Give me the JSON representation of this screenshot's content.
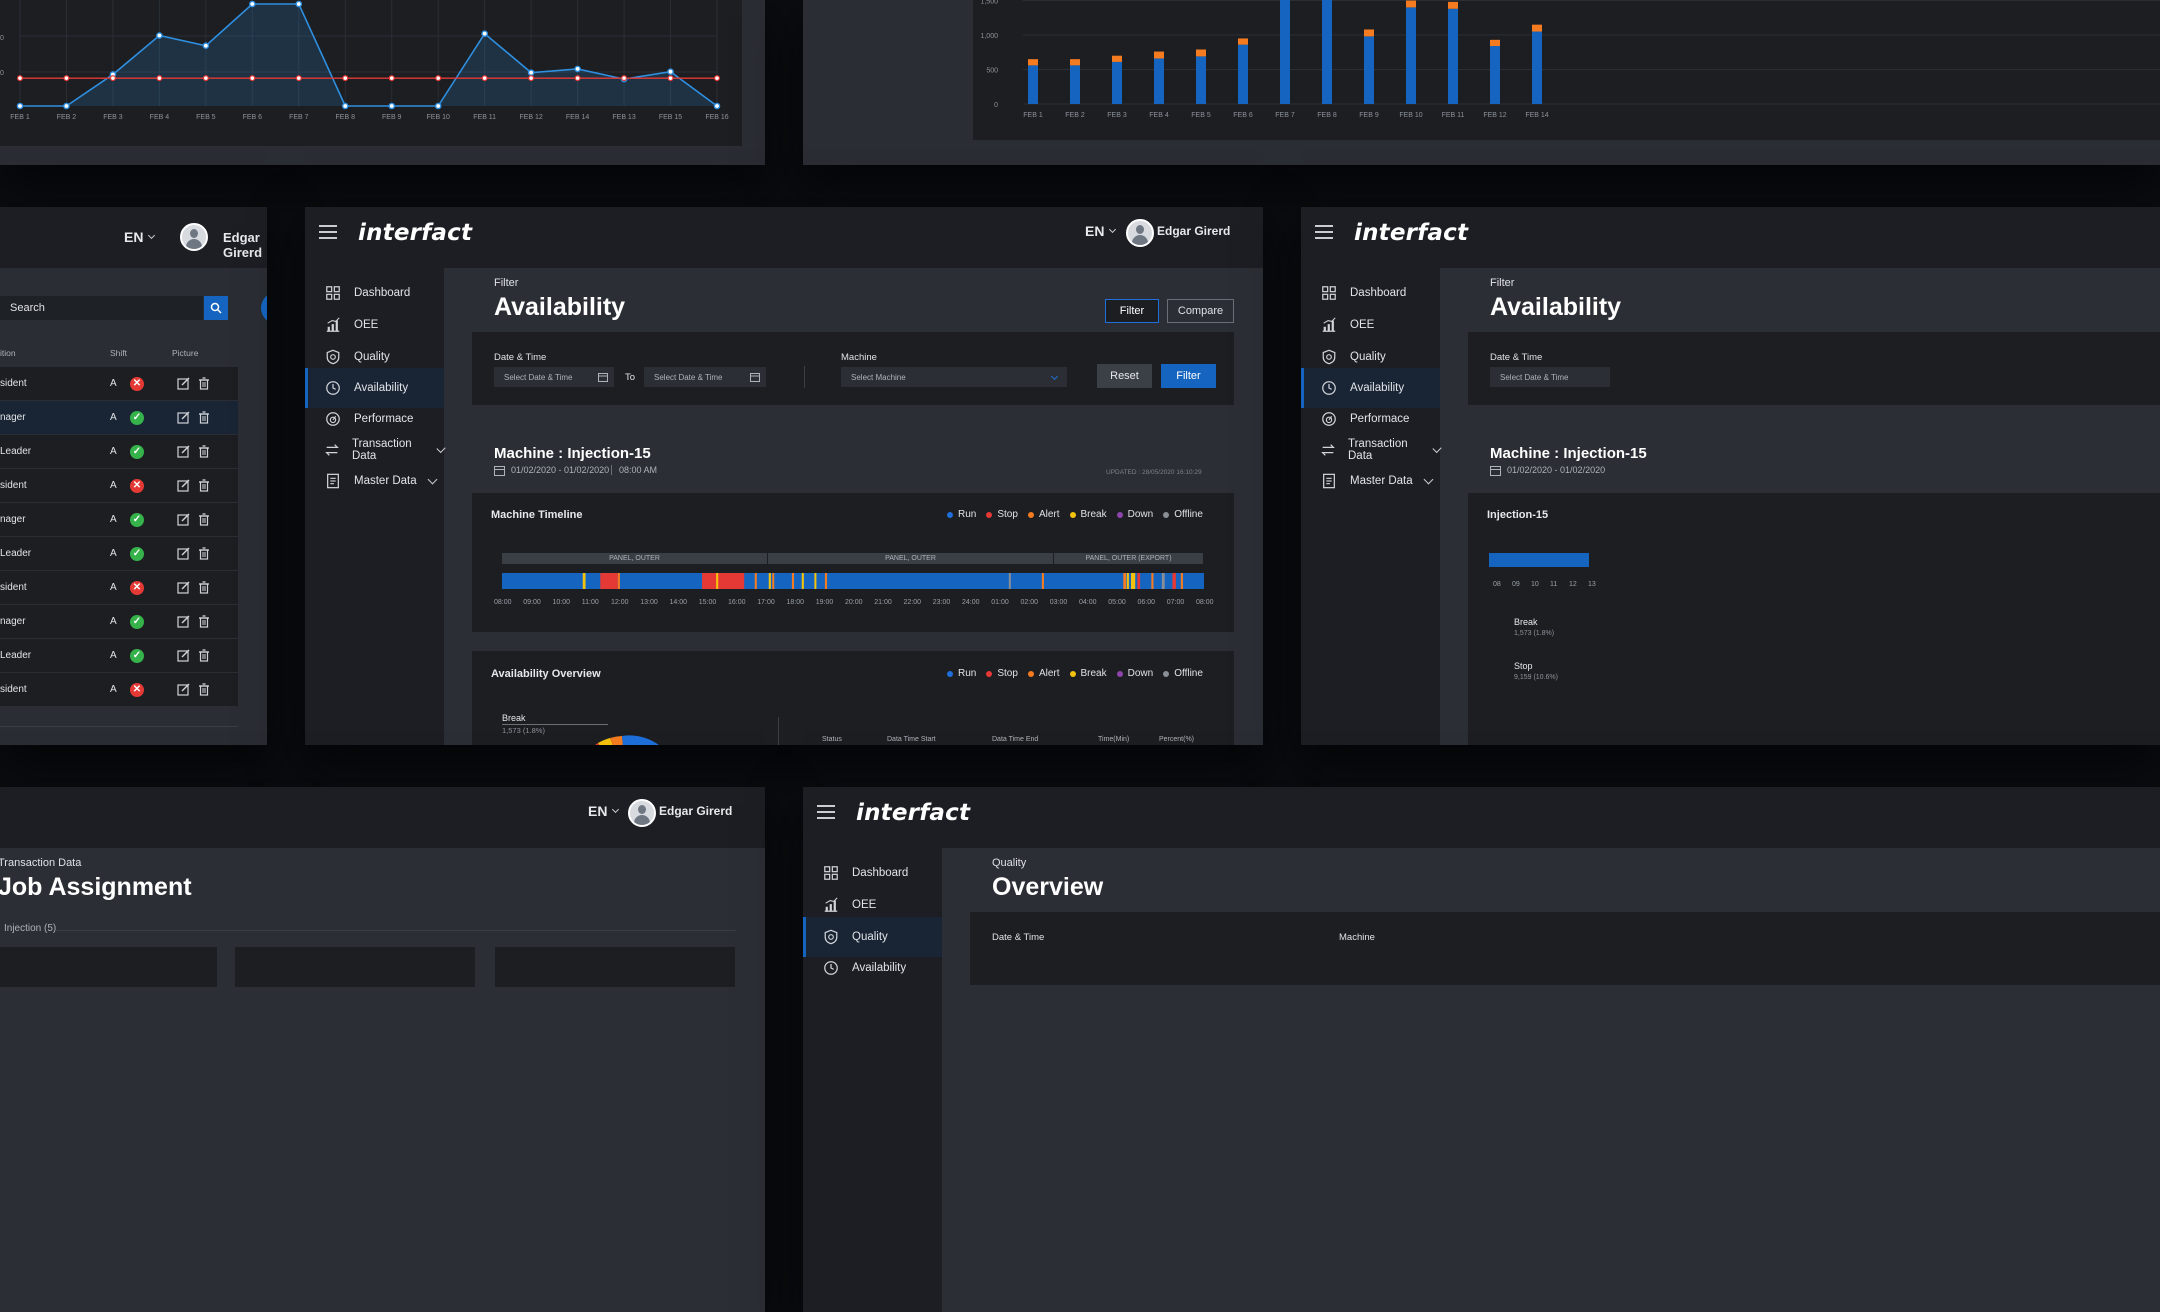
{
  "brand": "interfact",
  "language": "EN",
  "user": "Edgar Girerd",
  "nav": [
    {
      "label": "Dashboard",
      "icon": "grid-icon"
    },
    {
      "label": "OEE",
      "icon": "chart-icon"
    },
    {
      "label": "Quality",
      "icon": "shield-icon"
    },
    {
      "label": "Availability",
      "icon": "clock-icon"
    },
    {
      "label": "Performace",
      "icon": "gauge-icon"
    },
    {
      "label": "Transaction Data",
      "icon": "transfer-icon"
    },
    {
      "label": "Master Data",
      "icon": "document-icon"
    }
  ],
  "main": {
    "breadcrumb": "Filter",
    "title": "Availability",
    "filter_button": "Filter",
    "compare_button": "Compare",
    "filter_card": {
      "date_label": "Date & Time",
      "date_from_placeholder": "Select Date & Time",
      "to_label": "To",
      "date_to_placeholder": "Select Date & Time",
      "machine_label": "Machine",
      "machine_placeholder": "Select Machine",
      "reset_button": "Reset",
      "filter_button": "Filter"
    },
    "machine_title": "Machine : Injection-15",
    "date_range": "01/02/2020 - 01/02/2020",
    "time": "08:00 AM",
    "updated": "UPDATED : 28/05/2020  16:10:29",
    "timeline": {
      "title": "Machine Timeline",
      "segments": [
        "PANEL, OUTER",
        "PANEL, OUTER",
        "PANEL, OUTER (EXPORT)"
      ],
      "ticks": [
        "08:00",
        "09:00",
        "10:00",
        "11:00",
        "12:00",
        "13:00",
        "14:00",
        "15:00",
        "16:00",
        "17:00",
        "18:00",
        "19:00",
        "20:00",
        "21:00",
        "22:00",
        "23:00",
        "24:00",
        "01:00",
        "02:00",
        "03:00",
        "04:00",
        "05:00",
        "06:00",
        "07:00",
        "08:00"
      ]
    },
    "legend": [
      {
        "label": "Run",
        "color": "#1e6fd9"
      },
      {
        "label": "Stop",
        "color": "#e53935"
      },
      {
        "label": "Alert",
        "color": "#f47b20"
      },
      {
        "label": "Break",
        "color": "#f4c20d"
      },
      {
        "label": "Down",
        "color": "#8e44ad"
      },
      {
        "label": "Offline",
        "color": "#8a8f96"
      }
    ],
    "overview": {
      "title": "Availability Overview",
      "break_label": "Break",
      "break_value": "1,573 (1.8%)",
      "columns": [
        "Status",
        "Data Time Start",
        "Data Time End",
        "Time(Min)",
        "Percent(%)"
      ]
    }
  },
  "right_panel": {
    "timeline_title": "Injection-15",
    "ticks": [
      "08",
      "09",
      "10",
      "11",
      "12",
      "13"
    ],
    "items": [
      {
        "label": "Break",
        "value": "1,573 (1.8%)"
      },
      {
        "label": "Stop",
        "value": "9,159 (10.6%)"
      }
    ]
  },
  "left_table": {
    "search_placeholder": "Search",
    "columns": [
      "ition",
      "Shift",
      "Picture"
    ],
    "rows": [
      {
        "pos": "sident",
        "shift": "A",
        "ok": false
      },
      {
        "pos": "nager",
        "shift": "A",
        "ok": true
      },
      {
        "pos": "Leader",
        "shift": "A",
        "ok": true
      },
      {
        "pos": "sident",
        "shift": "A",
        "ok": false
      },
      {
        "pos": "nager",
        "shift": "A",
        "ok": true
      },
      {
        "pos": "Leader",
        "shift": "A",
        "ok": true
      },
      {
        "pos": "sident",
        "shift": "A",
        "ok": false
      },
      {
        "pos": "nager",
        "shift": "A",
        "ok": true
      },
      {
        "pos": "Leader",
        "shift": "A",
        "ok": true
      },
      {
        "pos": "sident",
        "shift": "A",
        "ok": false
      }
    ]
  },
  "bottom_left": {
    "breadcrumb": "Transaction Data",
    "title": "Job Assignment",
    "tab": "Injection (5)"
  },
  "bottom_right": {
    "breadcrumb": "Quality",
    "title": "Overview",
    "date_label": "Date & Time",
    "machine_label": "Machine",
    "nav": [
      "Dashboard",
      "OEE",
      "Quality",
      "Availability"
    ]
  },
  "chart_data": [
    {
      "type": "line",
      "categories": [
        "FEB 1",
        "FEB 2",
        "FEB 3",
        "FEB 4",
        "FEB 5",
        "FEB 6",
        "FEB 7",
        "FEB 8",
        "FEB 9",
        "FEB 10",
        "FEB 11",
        "FEB 12",
        "FEB 14",
        "FEB 13",
        "FEB 15",
        "FEB 16"
      ],
      "series": [
        {
          "values": [
            0,
            0,
            34,
            76,
            65,
            110,
            110,
            0,
            0,
            0,
            78,
            36,
            40,
            29,
            37,
            0
          ],
          "color": "#2f8fe0"
        },
        {
          "values": [
            30,
            30,
            30,
            30,
            30,
            30,
            30,
            30,
            30,
            30,
            30,
            30,
            30,
            30,
            30,
            30
          ],
          "color": "#e53935"
        }
      ],
      "ytick_labels": [
        "0",
        "0"
      ]
    },
    {
      "type": "bar",
      "categories": [
        "FEB 1",
        "FEB 2",
        "FEB 3",
        "FEB 4",
        "FEB 5",
        "FEB 6",
        "FEB 7",
        "FEB 8",
        "FEB 9",
        "FEB 10",
        "FEB 11",
        "FEB 12",
        "FEB 14"
      ],
      "series": [
        {
          "color": "#1565c0",
          "values": [
            560,
            560,
            610,
            660,
            690,
            860,
            1700,
            1700,
            980,
            1400,
            1380,
            840,
            1050
          ]
        },
        {
          "color": "#f47b20",
          "values": [
            90,
            90,
            90,
            100,
            100,
            90,
            0,
            0,
            100,
            100,
            100,
            90,
            100
          ]
        }
      ],
      "yticks": [
        "0",
        "500",
        "1,000",
        "1,500"
      ],
      "ylim": [
        0,
        1500
      ]
    }
  ]
}
